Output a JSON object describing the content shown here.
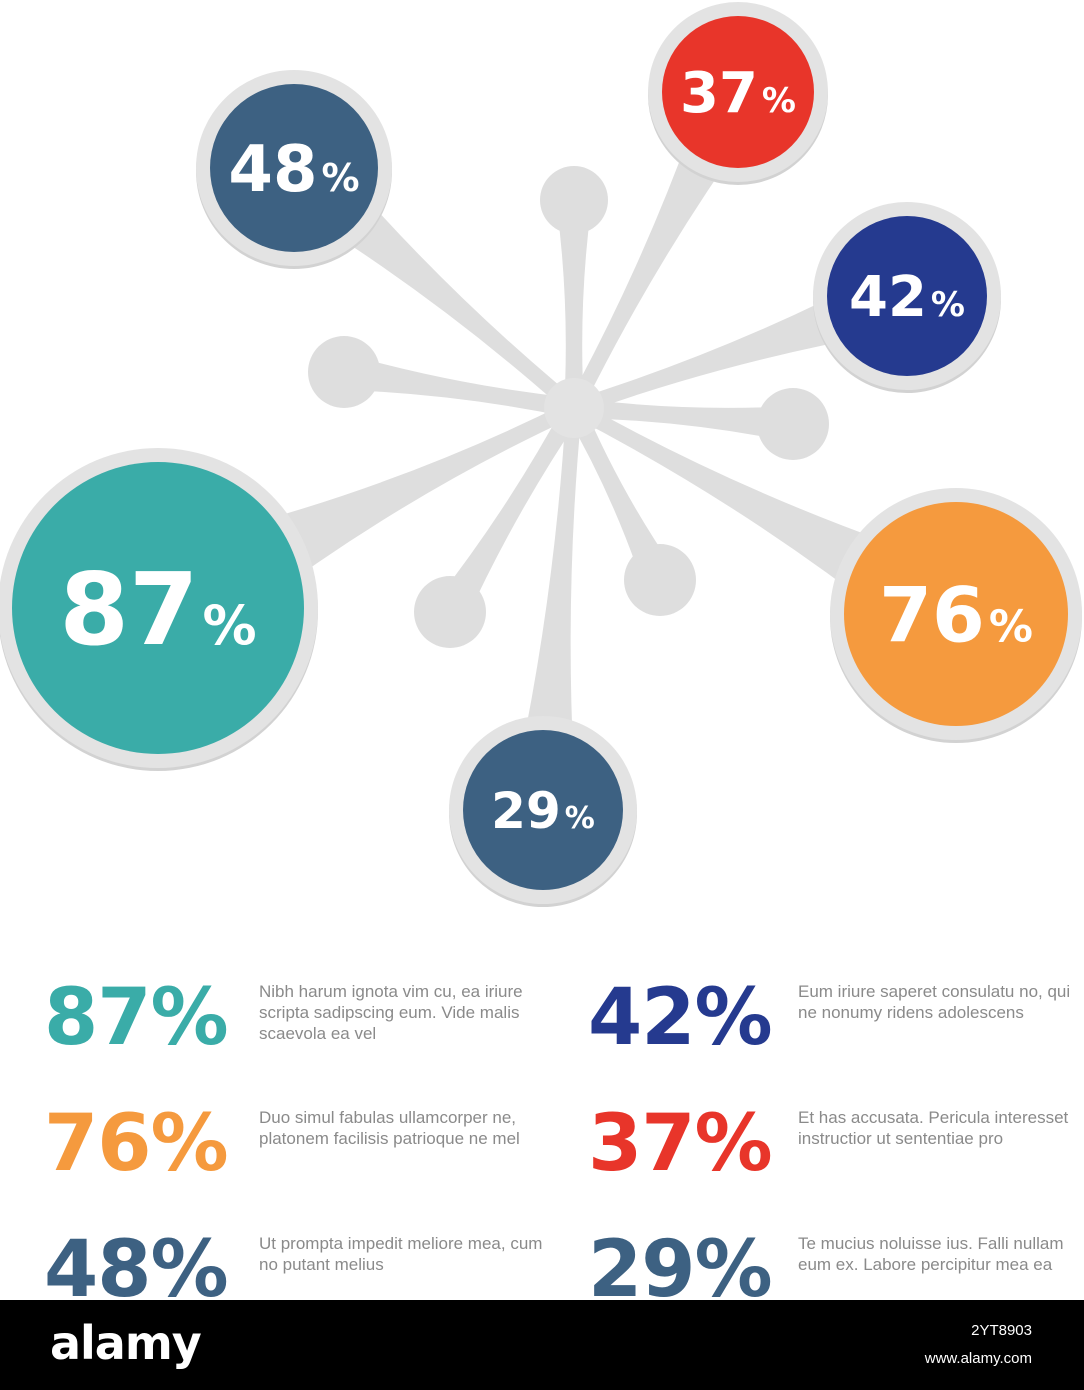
{
  "colors": {
    "connector": "#dedede",
    "ring": "#e3e3e3",
    "teal": "#3aaca8",
    "orange": "#f59a3e",
    "red": "#e8352a",
    "navy": "#253a8f",
    "slate": "#3d6182",
    "body_text": "#8a8a8a"
  },
  "bubbles": [
    {
      "value": "48",
      "unit": "%",
      "color": "slate"
    },
    {
      "value": "37",
      "unit": "%",
      "color": "red"
    },
    {
      "value": "42",
      "unit": "%",
      "color": "navy"
    },
    {
      "value": "87",
      "unit": "%",
      "color": "teal"
    },
    {
      "value": "76",
      "unit": "%",
      "color": "orange"
    },
    {
      "value": "29",
      "unit": "%",
      "color": "slate"
    }
  ],
  "stats": {
    "s87": {
      "value": "87%",
      "color": "#3aaca8",
      "text": "Nibh harum ignota vim cu, ea iriure scripta sadipscing eum. Vide malis scaevola ea vel"
    },
    "s42": {
      "value": "42%",
      "color": "#253a8f",
      "text": "Eum iriure saperet consulatu no, qui ne nonumy ridens adolescens"
    },
    "s76": {
      "value": "76%",
      "color": "#f59a3e",
      "text": "Duo simul fabulas ullamcorper ne, platonem facilisis patrioque ne mel"
    },
    "s37": {
      "value": "37%",
      "color": "#e8352a",
      "text": "Et has accusata. Pericula interesset instructior ut sententiae pro"
    },
    "s48": {
      "value": "48%",
      "color": "#3d6182",
      "text": "Ut prompta impedit meliore mea, cum no putant melius"
    },
    "s29": {
      "value": "29%",
      "color": "#3d6182",
      "text": "Te mucius noluisse ius. Falli nullam eum ex. Labore percipitur mea ea"
    }
  },
  "footer": {
    "logo": "alamy",
    "image_id": "2YT8903",
    "url": "www.alamy.com"
  }
}
